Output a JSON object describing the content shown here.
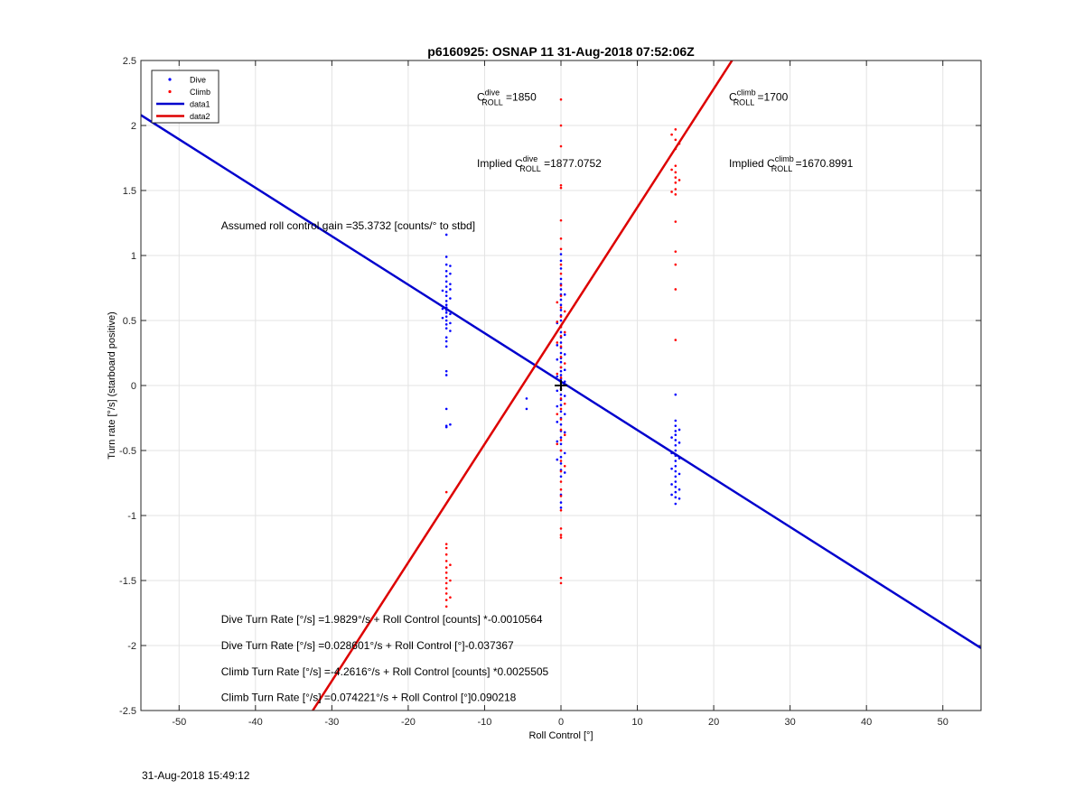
{
  "chart_data": {
    "type": "scatter",
    "title": "p6160925: OSNAP 11 31-Aug-2018 07:52:06Z",
    "xlabel": "Roll Control [°]",
    "ylabel": "Turn rate [°/s] (starboard positive)",
    "xlim": [
      -55,
      55
    ],
    "ylim": [
      -2.5,
      2.5
    ],
    "xticks": [
      -50,
      -40,
      -30,
      -20,
      -10,
      0,
      10,
      20,
      30,
      40,
      50
    ],
    "yticks": [
      -2.5,
      -2,
      -1.5,
      -1,
      -0.5,
      0,
      0.5,
      1,
      1.5,
      2,
      2.5
    ],
    "grid": true,
    "legend_position": "top-left",
    "series": [
      {
        "name": "Dive",
        "kind": "points",
        "color": "#0000ff",
        "points": [
          [
            -15,
            1.16
          ],
          [
            -15,
            0.99
          ],
          [
            -15,
            0.93
          ],
          [
            -15,
            0.88
          ],
          [
            -15,
            0.84
          ],
          [
            -15,
            0.8
          ],
          [
            -15,
            0.76
          ],
          [
            -15,
            0.72
          ],
          [
            -15,
            0.69
          ],
          [
            -15,
            0.65
          ],
          [
            -15,
            0.62
          ],
          [
            -15,
            0.6
          ],
          [
            -15,
            0.58
          ],
          [
            -15,
            0.56
          ],
          [
            -15,
            0.53
          ],
          [
            -15,
            0.5
          ],
          [
            -15,
            0.47
          ],
          [
            -15,
            0.44
          ],
          [
            -15,
            0.37
          ],
          [
            -15,
            0.34
          ],
          [
            -15,
            0.3
          ],
          [
            -15,
            0.11
          ],
          [
            -15,
            0.08
          ],
          [
            -15,
            -0.18
          ],
          [
            -15,
            -0.31
          ],
          [
            -15,
            -0.32
          ],
          [
            -14.5,
            0.92
          ],
          [
            -14.5,
            0.86
          ],
          [
            -14.5,
            0.78
          ],
          [
            -14.5,
            0.74
          ],
          [
            -14.5,
            0.67
          ],
          [
            -14.5,
            0.55
          ],
          [
            -14.5,
            0.48
          ],
          [
            -14.5,
            0.42
          ],
          [
            -14.5,
            -0.3
          ],
          [
            -15.5,
            0.73
          ],
          [
            -15.5,
            0.59
          ],
          [
            -15.5,
            0.52
          ],
          [
            -4.5,
            -0.1
          ],
          [
            -4.5,
            -0.18
          ],
          [
            0,
            1.01
          ],
          [
            0,
            0.96
          ],
          [
            0,
            0.9
          ],
          [
            0,
            0.82
          ],
          [
            0,
            0.78
          ],
          [
            0,
            0.74
          ],
          [
            0,
            0.7
          ],
          [
            0,
            0.66
          ],
          [
            0,
            0.62
          ],
          [
            0,
            0.58
          ],
          [
            0,
            0.54
          ],
          [
            0,
            0.5
          ],
          [
            0,
            0.46
          ],
          [
            0,
            0.41
          ],
          [
            0,
            0.37
          ],
          [
            0,
            0.33
          ],
          [
            0,
            0.29
          ],
          [
            0,
            0.25
          ],
          [
            0,
            0.21
          ],
          [
            0,
            0.18
          ],
          [
            0,
            0.14
          ],
          [
            0,
            0.11
          ],
          [
            0,
            0.08
          ],
          [
            0,
            0.05
          ],
          [
            0,
            0.02
          ],
          [
            0,
            0
          ],
          [
            0,
            -0.03
          ],
          [
            0,
            -0.07
          ],
          [
            0,
            -0.11
          ],
          [
            0,
            -0.15
          ],
          [
            0,
            -0.2
          ],
          [
            0,
            -0.25
          ],
          [
            0,
            -0.3
          ],
          [
            0,
            -0.35
          ],
          [
            0,
            -0.4
          ],
          [
            0,
            -0.45
          ],
          [
            0,
            -0.5
          ],
          [
            0,
            -0.55
          ],
          [
            0,
            -0.6
          ],
          [
            0,
            -0.65
          ],
          [
            0,
            -0.7
          ],
          [
            0,
            -0.84
          ],
          [
            0,
            -0.9
          ],
          [
            0,
            -0.94
          ],
          [
            -0.5,
            0.48
          ],
          [
            -0.5,
            0.31
          ],
          [
            -0.5,
            0.2
          ],
          [
            -0.5,
            0.07
          ],
          [
            -0.5,
            -0.04
          ],
          [
            -0.5,
            -0.16
          ],
          [
            -0.5,
            -0.28
          ],
          [
            -0.5,
            -0.43
          ],
          [
            -0.5,
            -0.57
          ],
          [
            0.5,
            0.7
          ],
          [
            0.5,
            0.39
          ],
          [
            0.5,
            0.24
          ],
          [
            0.5,
            0.12
          ],
          [
            0.5,
            0.03
          ],
          [
            0.5,
            -0.08
          ],
          [
            0.5,
            -0.22
          ],
          [
            0.5,
            -0.36
          ],
          [
            0.5,
            -0.52
          ],
          [
            0.5,
            -0.67
          ],
          [
            15,
            -0.07
          ],
          [
            15,
            -0.27
          ],
          [
            15,
            -0.31
          ],
          [
            15,
            -0.35
          ],
          [
            15,
            -0.38
          ],
          [
            15,
            -0.42
          ],
          [
            15,
            -0.46
          ],
          [
            15,
            -0.5
          ],
          [
            15,
            -0.54
          ],
          [
            15,
            -0.58
          ],
          [
            15,
            -0.62
          ],
          [
            15,
            -0.66
          ],
          [
            15,
            -0.7
          ],
          [
            15,
            -0.74
          ],
          [
            15,
            -0.78
          ],
          [
            15,
            -0.82
          ],
          [
            15,
            -0.86
          ],
          [
            15,
            -0.91
          ],
          [
            14.5,
            -0.4
          ],
          [
            14.5,
            -0.52
          ],
          [
            14.5,
            -0.64
          ],
          [
            14.5,
            -0.76
          ],
          [
            14.5,
            -0.84
          ],
          [
            15.5,
            -0.34
          ],
          [
            15.5,
            -0.44
          ],
          [
            15.5,
            -0.56
          ],
          [
            15.5,
            -0.68
          ],
          [
            15.5,
            -0.8
          ],
          [
            15.5,
            -0.87
          ]
        ]
      },
      {
        "name": "Climb",
        "kind": "points",
        "color": "#ff0000",
        "points": [
          [
            -15,
            -0.82
          ],
          [
            -15,
            -1.22
          ],
          [
            -15,
            -1.25
          ],
          [
            -15,
            -1.3
          ],
          [
            -15,
            -1.35
          ],
          [
            -15,
            -1.4
          ],
          [
            -15,
            -1.44
          ],
          [
            -15,
            -1.48
          ],
          [
            -15,
            -1.52
          ],
          [
            -15,
            -1.56
          ],
          [
            -15,
            -1.6
          ],
          [
            -15,
            -1.65
          ],
          [
            -15,
            -1.7
          ],
          [
            -14.5,
            -1.38
          ],
          [
            -14.5,
            -1.5
          ],
          [
            -14.5,
            -1.63
          ],
          [
            0,
            2.2
          ],
          [
            0,
            2.0
          ],
          [
            0,
            1.84
          ],
          [
            0,
            1.54
          ],
          [
            0,
            1.52
          ],
          [
            0,
            1.27
          ],
          [
            0,
            1.13
          ],
          [
            0,
            1.05
          ],
          [
            0,
            0.93
          ],
          [
            0,
            0.86
          ],
          [
            0,
            0.77
          ],
          [
            0,
            0.69
          ],
          [
            0,
            0.6
          ],
          [
            0,
            0.53
          ],
          [
            0,
            0.45
          ],
          [
            0,
            0.38
          ],
          [
            0,
            0.3
          ],
          [
            0,
            0.22
          ],
          [
            0,
            0.14
          ],
          [
            0,
            0.06
          ],
          [
            0,
            -0.02
          ],
          [
            0,
            -0.1
          ],
          [
            0,
            -0.18
          ],
          [
            0,
            -0.26
          ],
          [
            0,
            -0.34
          ],
          [
            0,
            -0.42
          ],
          [
            0,
            -0.5
          ],
          [
            0,
            -0.58
          ],
          [
            0,
            -0.66
          ],
          [
            0,
            -0.74
          ],
          [
            0,
            -0.8
          ],
          [
            0,
            -0.85
          ],
          [
            0,
            -0.96
          ],
          [
            0,
            -1.1
          ],
          [
            0,
            -1.15
          ],
          [
            0,
            -1.17
          ],
          [
            0,
            -1.48
          ],
          [
            0,
            -1.52
          ],
          [
            -0.5,
            0.64
          ],
          [
            -0.5,
            0.49
          ],
          [
            -0.5,
            0.33
          ],
          [
            -0.5,
            0.09
          ],
          [
            -0.5,
            -0.22
          ],
          [
            -0.5,
            -0.45
          ],
          [
            0.5,
            0.57
          ],
          [
            0.5,
            0.41
          ],
          [
            0.5,
            0.17
          ],
          [
            0.5,
            -0.14
          ],
          [
            0.5,
            -0.38
          ],
          [
            0.5,
            -0.62
          ],
          [
            15,
            1.97
          ],
          [
            15,
            1.89
          ],
          [
            15,
            1.82
          ],
          [
            15,
            1.69
          ],
          [
            15,
            1.64
          ],
          [
            15,
            1.6
          ],
          [
            15,
            1.56
          ],
          [
            15,
            1.51
          ],
          [
            15,
            1.47
          ],
          [
            15,
            1.26
          ],
          [
            15,
            1.03
          ],
          [
            15,
            0.93
          ],
          [
            15,
            0.74
          ],
          [
            15,
            0.35
          ],
          [
            14.5,
            1.93
          ],
          [
            14.5,
            1.66
          ],
          [
            14.5,
            1.49
          ],
          [
            15.5,
            1.86
          ],
          [
            15.5,
            1.58
          ]
        ]
      },
      {
        "name": "data1",
        "kind": "line",
        "color": "#0000cd",
        "x": [
          -55,
          55
        ],
        "y": [
          2.08,
          -2.02
        ]
      },
      {
        "name": "data2",
        "kind": "line",
        "color": "#dd0000",
        "x": [
          -32.5,
          22.4
        ],
        "y": [
          -2.5,
          2.5
        ]
      }
    ],
    "marker": {
      "x": 0,
      "y": 0
    },
    "annotations": [
      {
        "text": "Assumed roll control gain =35.3732 [counts/° to stbd]",
        "x": -44.5,
        "y": 1.23
      },
      {
        "text": "Dive Turn Rate [°/s] =1.9829°/s + Roll Control [counts] *-0.0010564",
        "x": -44.5,
        "y": -1.8
      },
      {
        "text": "Dive Turn Rate [°/s] =0.028601°/s + Roll Control [°]-0.037367",
        "x": -44.5,
        "y": -2.0
      },
      {
        "text": "Climb Turn Rate [°/s] =-4.2616°/s + Roll Control [counts] *0.0025505",
        "x": -44.5,
        "y": -2.2
      },
      {
        "text": "Climb Turn Rate [°/s] =0.074221°/s + Roll Control [°]0.090218",
        "x": -44.5,
        "y": -2.4
      }
    ],
    "coef_labels": [
      {
        "prefix": "",
        "base": "C",
        "sup": "dive",
        "sub": "ROLL",
        "suffix": " =1850",
        "x": -11,
        "y": 2.22
      },
      {
        "prefix": "",
        "base": "C",
        "sup": "climb",
        "sub": "ROLL",
        "suffix": " =1700",
        "x": 22,
        "y": 2.22
      },
      {
        "prefix": "Implied ",
        "base": "C",
        "sup": "dive",
        "sub": "ROLL",
        "suffix": " =1877.0752",
        "x": -11,
        "y": 1.71
      },
      {
        "prefix": "Implied ",
        "base": "C",
        "sup": "climb",
        "sub": "ROLL",
        "suffix": " =1670.8991",
        "x": 22,
        "y": 1.71
      }
    ]
  },
  "footer": {
    "timestamp": "31-Aug-2018 15:49:12"
  }
}
